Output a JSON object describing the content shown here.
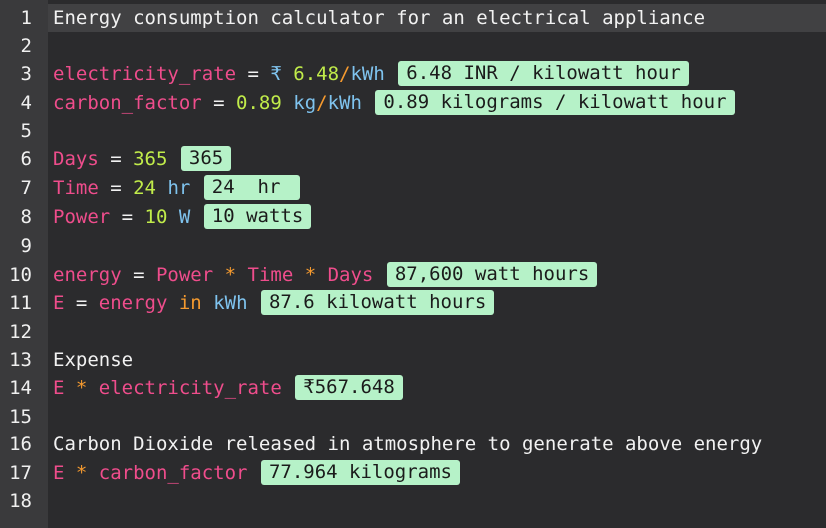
{
  "line_numbers": [
    "1",
    "2",
    "3",
    "4",
    "5",
    "6",
    "7",
    "8",
    "9",
    "10",
    "11",
    "12",
    "13",
    "14",
    "15",
    "16",
    "17",
    "18"
  ],
  "lines": {
    "l1": {
      "text": "Energy consumption calculator for an electrical appliance"
    },
    "l3": {
      "var": "electricity_rate",
      "eq": " = ",
      "currency": "₹ ",
      "num": "6.48",
      "slash": "/",
      "unit": "kWh",
      "result": "6.48 INR / kilowatt hour"
    },
    "l4": {
      "var": "carbon_factor",
      "eq": " = ",
      "num": "0.89",
      "unit1": "kg",
      "slash": "/",
      "unit2": "kWh",
      "result": "0.89 kilograms / kilowatt hour"
    },
    "l6": {
      "var": "Days",
      "eq": " = ",
      "num": "365",
      "result": "365"
    },
    "l7": {
      "var": "Time",
      "eq": " = ",
      "num": "24",
      "unit": "hr",
      "result": "24  hr "
    },
    "l8": {
      "var": "Power",
      "eq": " = ",
      "num": "10",
      "unit": "W",
      "result": "10 watts"
    },
    "l10": {
      "var": "energy",
      "eq": " = ",
      "a": "Power",
      "op1": " * ",
      "b": "Time",
      "op2": " * ",
      "c": "Days",
      "result": "87,600 watt hours"
    },
    "l11": {
      "var": "E",
      "eq": " = ",
      "a": "energy",
      "kw": " in ",
      "unit": "kWh",
      "result": "87.6 kilowatt hours"
    },
    "l13": {
      "text": "Expense"
    },
    "l14": {
      "a": "E",
      "op": " * ",
      "b": "electricity_rate",
      "result": "₹567.648"
    },
    "l16": {
      "text": "Carbon Dioxide released in atmosphere to generate above energy"
    },
    "l17": {
      "a": "E",
      "op": " * ",
      "b": "carbon_factor",
      "result": "77.964 kilograms"
    }
  },
  "colors": {
    "background": "#2b2b2d",
    "gutter": "#3a3a3c",
    "current_line": "#414143",
    "variable": "#ef4d8c",
    "number": "#c1ec4a",
    "unit": "#7fc3ee",
    "operator": "#f59a2f",
    "result_badge": "#b6f2c8"
  }
}
